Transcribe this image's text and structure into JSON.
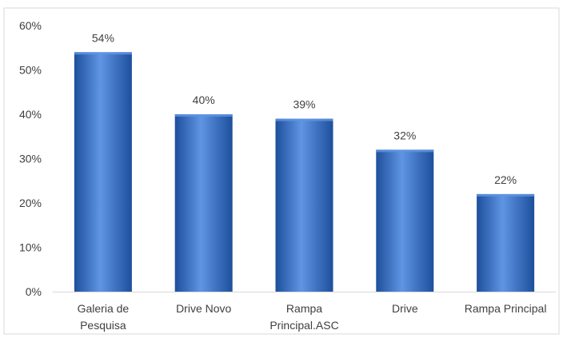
{
  "chart_data": {
    "type": "bar",
    "categories": [
      [
        "Galeria de",
        "Pesquisa"
      ],
      [
        "Drive Novo"
      ],
      [
        "Rampa",
        "Principal.ASC"
      ],
      [
        "Drive"
      ],
      [
        "Rampa Principal"
      ]
    ],
    "values": [
      54,
      40,
      39,
      32,
      22
    ],
    "data_labels": [
      "54%",
      "40%",
      "39%",
      "32%",
      "22%"
    ],
    "y_ticks": [
      "0%",
      "10%",
      "20%",
      "30%",
      "40%",
      "50%",
      "60%"
    ],
    "ylim": [
      0,
      60
    ],
    "grid": false,
    "legend": "none",
    "bar_color": "#2e6bc9",
    "bar_color_dark": "#1d4f9c",
    "bar_color_light": "#5f95e3"
  }
}
